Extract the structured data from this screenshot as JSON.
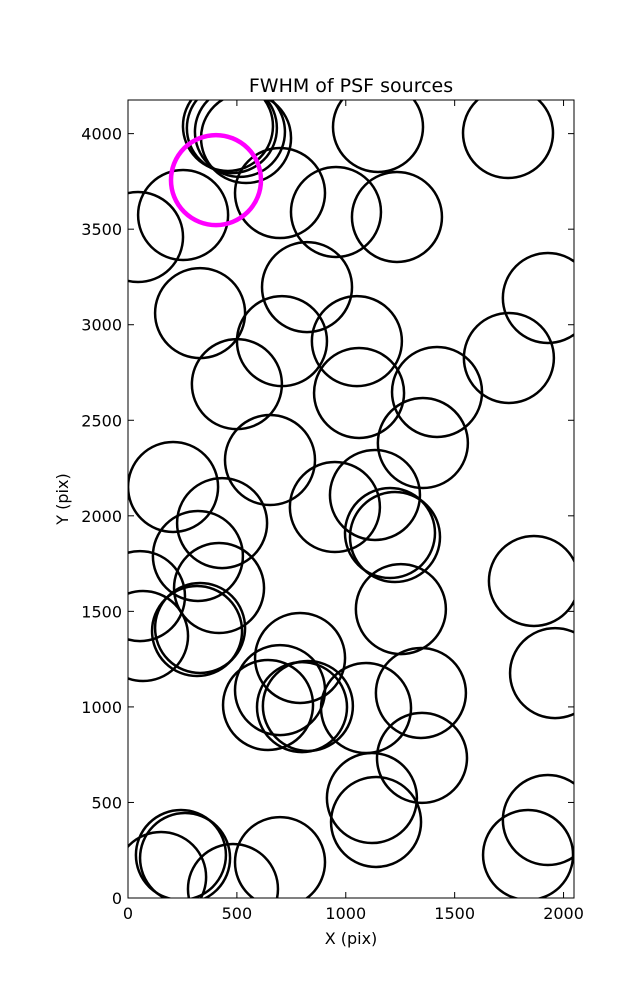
{
  "chart_data": {
    "type": "scatter",
    "title": "FWHM of PSF sources",
    "x_label": "X (pix)",
    "y_label": "Y (pix)",
    "xlim": [
      0,
      2048
    ],
    "ylim": [
      0,
      4176
    ],
    "xticks": [
      0,
      500,
      1000,
      1500,
      2000
    ],
    "yticks": [
      0,
      500,
      1000,
      1500,
      2000,
      2500,
      3000,
      3500,
      4000
    ],
    "series": [
      {
        "color": "#000000",
        "x": [
          477,
          459,
          514,
          542,
          1148,
          1745,
          698,
          253,
          46,
          955,
          1235,
          1928,
          822,
          331,
          707,
          1051,
          500,
          1061,
          1419,
          1749,
          1354,
          652,
          207,
          432,
          950,
          1134,
          1203,
          1226,
          55,
          321,
          418,
          1253,
          1864,
          69,
          317,
          331,
          790,
          698,
          643,
          799,
          826,
          1093,
          1345,
          1350,
          1961,
          1120,
          1139,
          1928,
          1837,
          243,
          262,
          152,
          482,
          698
        ],
        "values": [
          4029,
          4040,
          4009,
          3977,
          4035,
          4003,
          3689,
          3574,
          3459,
          3590,
          3564,
          3140,
          3197,
          3061,
          2914,
          2914,
          2689,
          2643,
          2648,
          2826,
          2381,
          2292,
          2151,
          1962,
          2046,
          2109,
          1910,
          1889,
          1580,
          1790,
          1622,
          1512,
          1659,
          1371,
          1397,
          1413,
          1256,
          1088,
          1010,
          999,
          1005,
          994,
          1073,
          733,
          1177,
          523,
          398,
          408,
          225,
          225,
          209,
          110,
          47,
          188
        ]
      },
      {
        "color": "#ff00ff",
        "x": [
          404
        ],
        "values": [
          3757
        ]
      }
    ]
  }
}
